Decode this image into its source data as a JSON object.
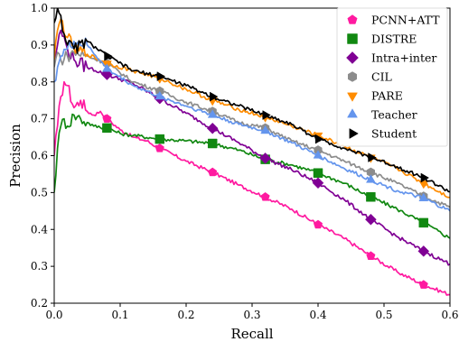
{
  "chart_data": {
    "type": "line",
    "title": "",
    "xlabel": "Recall",
    "ylabel": "Precision",
    "xlim": [
      0.0,
      0.6
    ],
    "ylim": [
      0.2,
      1.0
    ],
    "xticks": [
      "0.0",
      "0.1",
      "0.2",
      "0.3",
      "0.4",
      "0.5",
      "0.6"
    ],
    "yticks": [
      "0.2",
      "0.3",
      "0.4",
      "0.5",
      "0.6",
      "0.7",
      "0.8",
      "0.9",
      "1.0"
    ],
    "legend_position": "top-right",
    "grid": false,
    "series": [
      {
        "name": "PCNN+ATT",
        "color": "#ff1aa0",
        "marker": "pentagon",
        "x": [
          0.0,
          0.005,
          0.01,
          0.015,
          0.02,
          0.03,
          0.04,
          0.05,
          0.06,
          0.07,
          0.08,
          0.1,
          0.12,
          0.14,
          0.16,
          0.2,
          0.24,
          0.28,
          0.32,
          0.36,
          0.4,
          0.44,
          0.48,
          0.52,
          0.56,
          0.6
        ],
        "y": [
          0.6,
          0.68,
          0.76,
          0.8,
          0.79,
          0.73,
          0.75,
          0.72,
          0.71,
          0.72,
          0.7,
          0.67,
          0.65,
          0.64,
          0.62,
          0.585,
          0.555,
          0.52,
          0.488,
          0.455,
          0.413,
          0.375,
          0.328,
          0.285,
          0.25,
          0.223
        ]
      },
      {
        "name": "DISTRE",
        "color": "#118811",
        "marker": "square",
        "x": [
          0.0,
          0.005,
          0.01,
          0.015,
          0.02,
          0.03,
          0.04,
          0.05,
          0.06,
          0.08,
          0.1,
          0.12,
          0.16,
          0.2,
          0.24,
          0.28,
          0.32,
          0.36,
          0.4,
          0.44,
          0.48,
          0.52,
          0.56,
          0.6
        ],
        "y": [
          0.5,
          0.62,
          0.68,
          0.7,
          0.68,
          0.71,
          0.7,
          0.69,
          0.68,
          0.675,
          0.66,
          0.655,
          0.645,
          0.64,
          0.633,
          0.615,
          0.59,
          0.575,
          0.553,
          0.525,
          0.488,
          0.455,
          0.418,
          0.376
        ]
      },
      {
        "name": "Intra+inter",
        "color": "#800094",
        "marker": "diamond",
        "x": [
          0.0,
          0.005,
          0.01,
          0.02,
          0.03,
          0.05,
          0.08,
          0.12,
          0.16,
          0.2,
          0.24,
          0.28,
          0.32,
          0.36,
          0.4,
          0.44,
          0.48,
          0.52,
          0.56,
          0.6
        ],
        "y": [
          0.86,
          0.9,
          0.94,
          0.89,
          0.86,
          0.84,
          0.82,
          0.795,
          0.755,
          0.715,
          0.674,
          0.635,
          0.593,
          0.562,
          0.526,
          0.48,
          0.427,
          0.38,
          0.341,
          0.306
        ]
      },
      {
        "name": "CIL",
        "color": "#8c8c8c",
        "marker": "hexagon",
        "x": [
          0.0,
          0.005,
          0.01,
          0.02,
          0.03,
          0.05,
          0.08,
          0.12,
          0.16,
          0.2,
          0.24,
          0.28,
          0.32,
          0.36,
          0.4,
          0.44,
          0.48,
          0.52,
          0.56,
          0.6
        ],
        "y": [
          0.84,
          0.88,
          0.86,
          0.87,
          0.88,
          0.87,
          0.85,
          0.8,
          0.775,
          0.745,
          0.72,
          0.69,
          0.675,
          0.64,
          0.615,
          0.585,
          0.555,
          0.525,
          0.49,
          0.46
        ]
      },
      {
        "name": "PARE",
        "color": "#ff8c00",
        "marker": "triangle-down",
        "x": [
          0.0,
          0.005,
          0.01,
          0.02,
          0.03,
          0.05,
          0.08,
          0.12,
          0.16,
          0.2,
          0.24,
          0.28,
          0.32,
          0.36,
          0.4,
          0.44,
          0.48,
          0.52,
          0.56,
          0.6
        ],
        "y": [
          0.86,
          0.94,
          0.97,
          0.92,
          0.89,
          0.875,
          0.85,
          0.83,
          0.81,
          0.78,
          0.75,
          0.725,
          0.705,
          0.68,
          0.655,
          0.625,
          0.595,
          0.565,
          0.525,
          0.487
        ]
      },
      {
        "name": "Teacher",
        "color": "#6495ed",
        "marker": "triangle-up",
        "x": [
          0.0,
          0.005,
          0.01,
          0.02,
          0.03,
          0.05,
          0.08,
          0.12,
          0.16,
          0.2,
          0.24,
          0.28,
          0.32,
          0.36,
          0.4,
          0.44,
          0.48,
          0.52,
          0.56,
          0.6
        ],
        "y": [
          0.8,
          0.84,
          0.87,
          0.89,
          0.91,
          0.9,
          0.835,
          0.79,
          0.76,
          0.735,
          0.71,
          0.685,
          0.667,
          0.635,
          0.6,
          0.565,
          0.534,
          0.505,
          0.484,
          0.45
        ]
      },
      {
        "name": "Student",
        "color": "#000000",
        "marker": "triangle-right",
        "x": [
          0.0,
          0.005,
          0.01,
          0.015,
          0.02,
          0.03,
          0.05,
          0.08,
          0.12,
          0.16,
          0.2,
          0.24,
          0.28,
          0.32,
          0.36,
          0.4,
          0.44,
          0.48,
          0.52,
          0.56,
          0.6
        ],
        "y": [
          0.96,
          1.0,
          0.98,
          0.93,
          0.9,
          0.89,
          0.91,
          0.87,
          0.83,
          0.815,
          0.79,
          0.76,
          0.735,
          0.71,
          0.685,
          0.645,
          0.62,
          0.595,
          0.57,
          0.54,
          0.502
        ]
      }
    ]
  }
}
